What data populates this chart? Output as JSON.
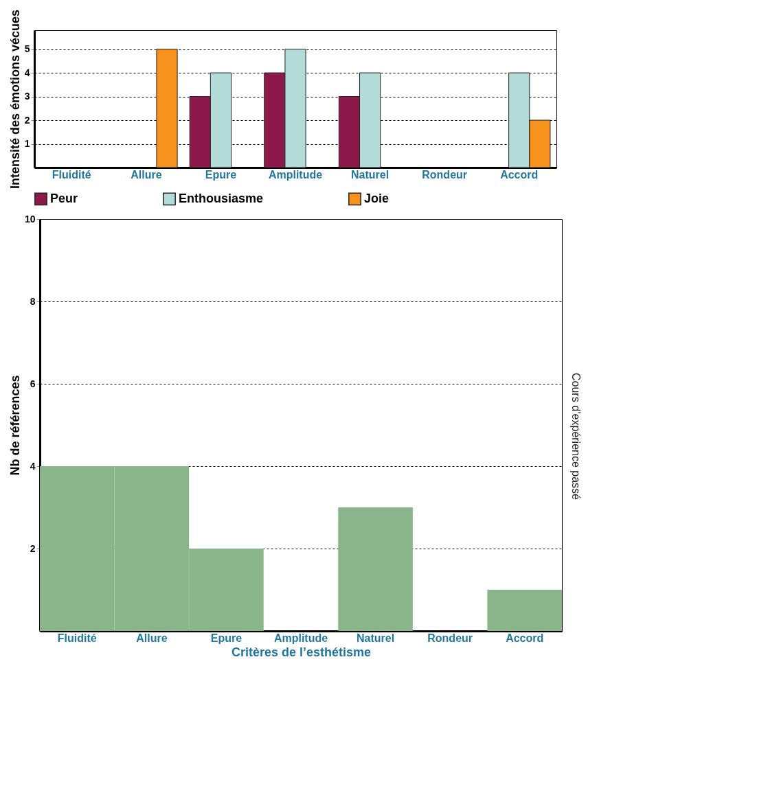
{
  "chart_data": [
    {
      "type": "bar",
      "ylabel": "Intensité des émotions vécues",
      "categories": [
        "Fluidité",
        "Allure",
        "Epure",
        "Amplitude",
        "Naturel",
        "Rondeur",
        "Accord"
      ],
      "series": [
        {
          "name": "Peur",
          "color": "#8b1a4a",
          "values": [
            null,
            null,
            3,
            4,
            3,
            null,
            null
          ]
        },
        {
          "name": "Enthousiasme",
          "color": "#b3dcd9",
          "values": [
            null,
            null,
            4,
            5,
            4,
            null,
            4
          ]
        },
        {
          "name": "Joie",
          "color": "#f7921e",
          "values": [
            null,
            5,
            null,
            null,
            null,
            null,
            2
          ]
        }
      ],
      "ylim": [
        0,
        5.8
      ],
      "yticks": [
        1,
        2,
        3,
        4,
        5
      ],
      "grid": "y",
      "legend": "bottom"
    },
    {
      "type": "bar",
      "xlabel": "Critères de l’esthétisme",
      "ylabel": "Nb de références",
      "annotations": [
        "Cours d’expérience passé"
      ],
      "categories": [
        "Fluidité",
        "Allure",
        "Epure",
        "Amplitude",
        "Naturel",
        "Rondeur",
        "Accord"
      ],
      "values": [
        4,
        4,
        2,
        0,
        3,
        0,
        1
      ],
      "color": "#8ab58a",
      "ylim": [
        0,
        10
      ],
      "yticks": [
        2,
        4,
        6,
        8,
        10
      ],
      "grid": "y"
    }
  ]
}
